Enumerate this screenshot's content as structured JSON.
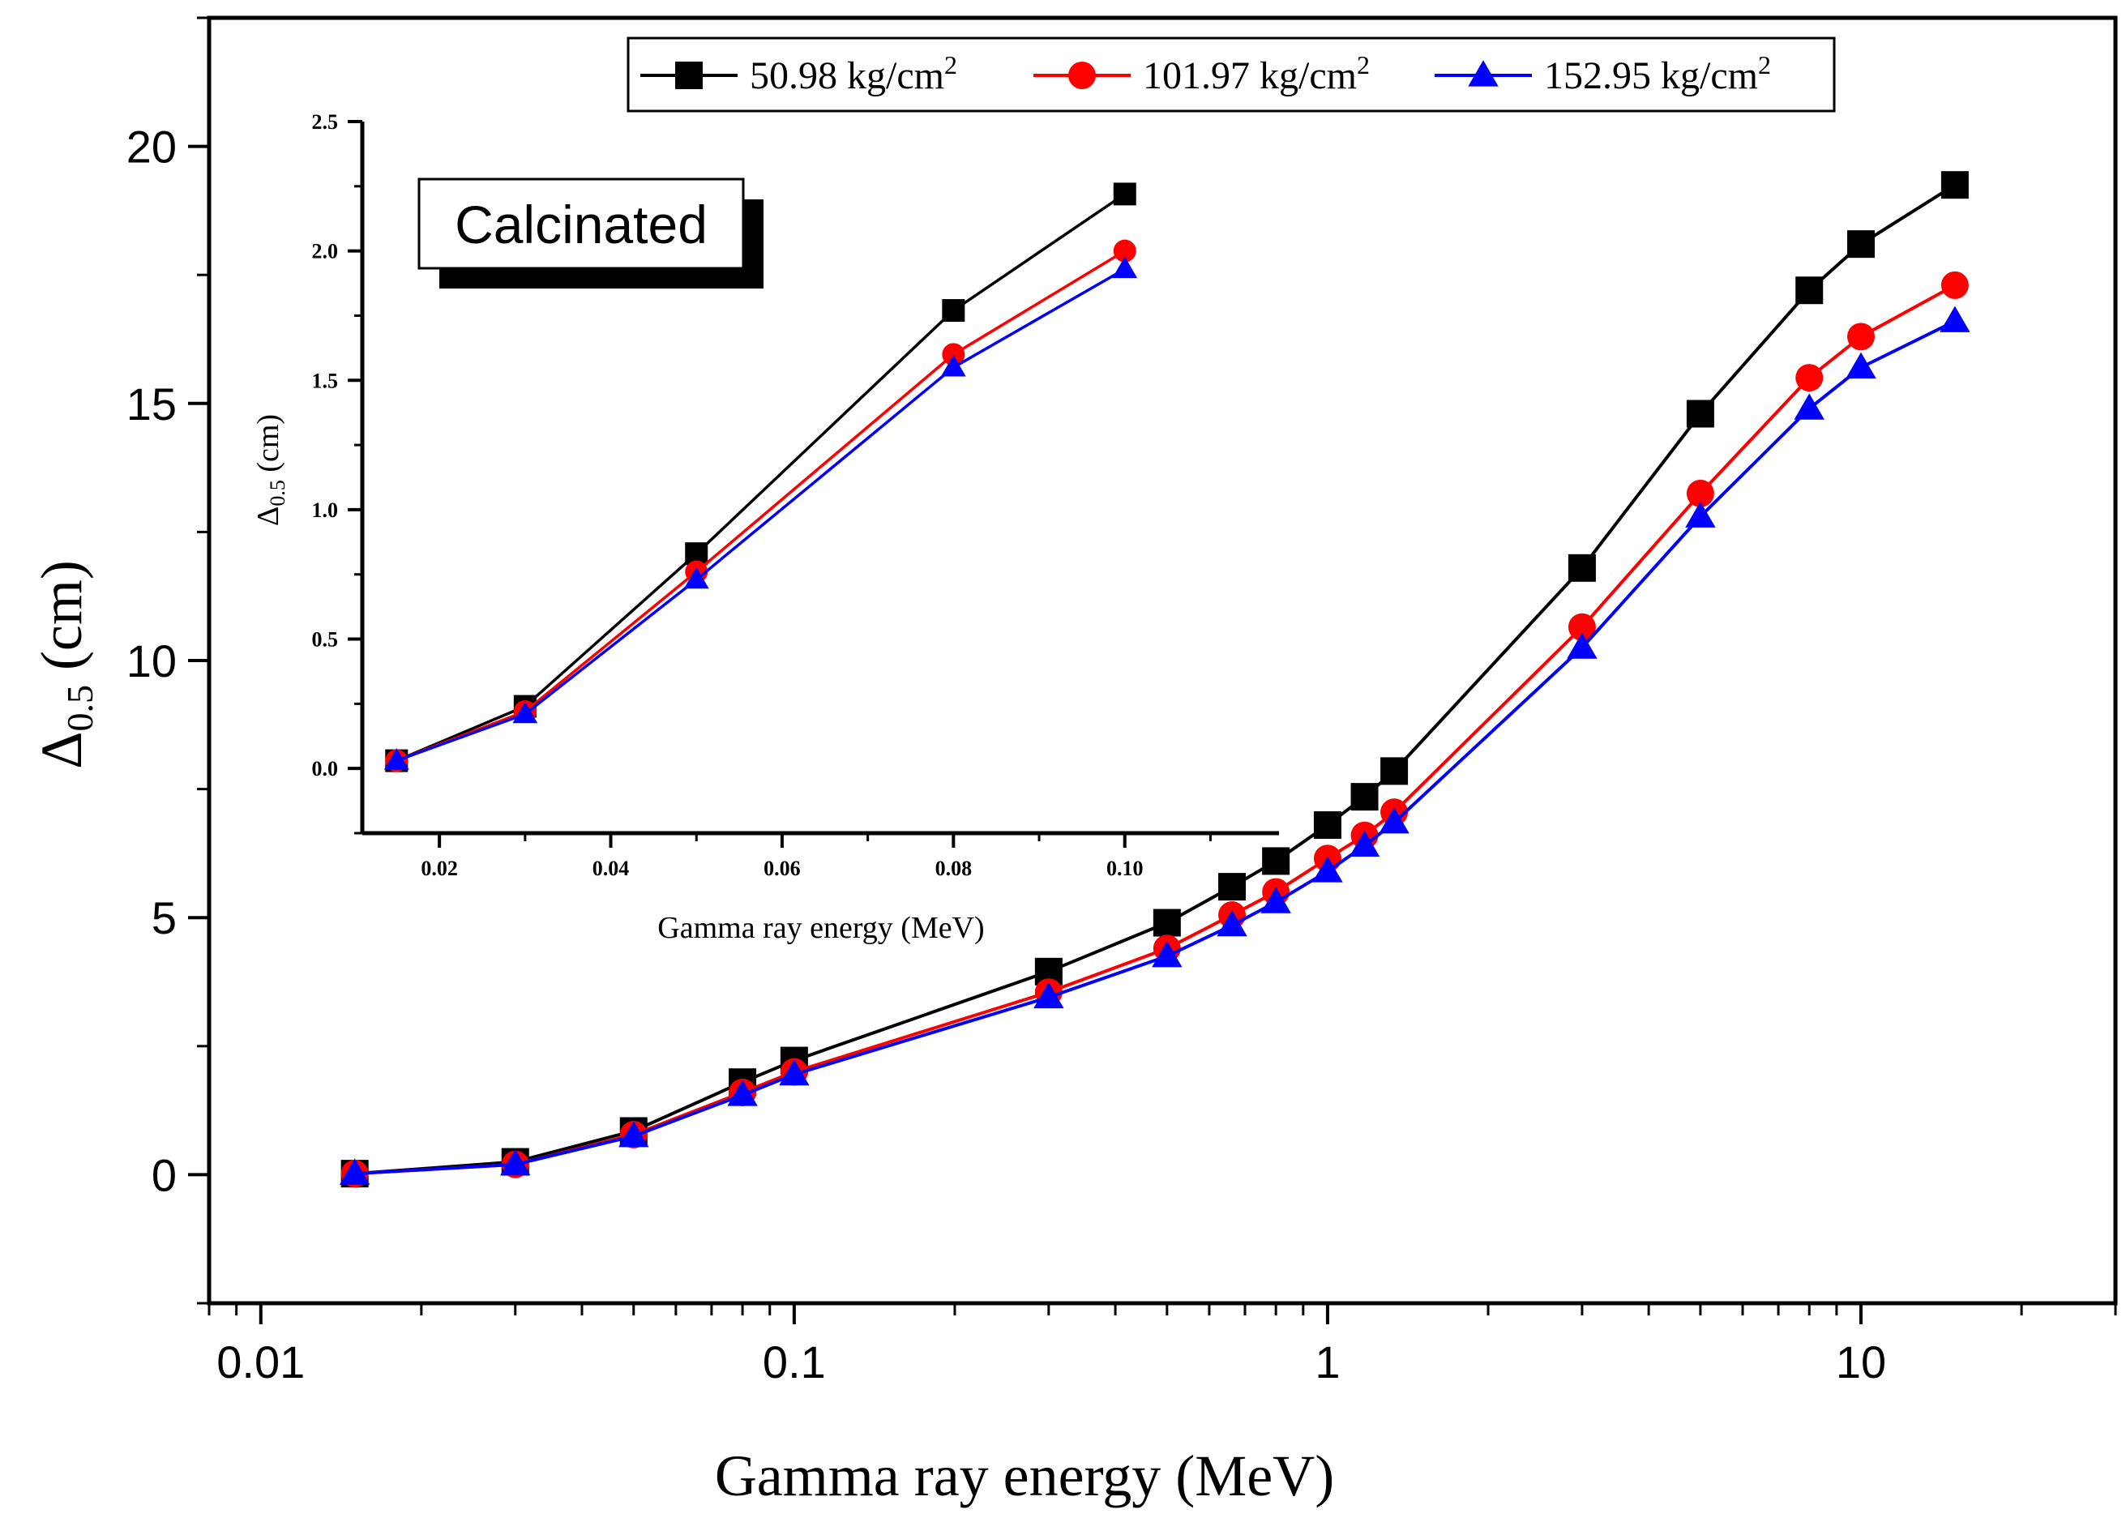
{
  "chart_data": [
    {
      "type": "line",
      "title": "",
      "xscale": "log",
      "xlabel": "Gamma ray energy (MeV)",
      "ylabel": "Δ0.5 (cm)",
      "ylabel_base": "Δ",
      "ylabel_sub": "0.5",
      "ylabel_rest": " (cm)",
      "xlim": [
        0.008,
        30
      ],
      "ylim": [
        -2.5,
        22.5
      ],
      "xticks": [
        0.01,
        0.1,
        1,
        10
      ],
      "xtick_labels": [
        "0.01",
        "0.1",
        "1",
        "10"
      ],
      "yticks": [
        0,
        5,
        10,
        15,
        20
      ],
      "ytick_labels": [
        "0",
        "5",
        "10",
        "15",
        "20"
      ],
      "x": [
        0.015,
        0.03,
        0.05,
        0.08,
        0.1,
        0.3,
        0.5,
        0.662,
        0.8,
        1.0,
        1.173,
        1.333,
        3,
        5,
        8,
        10,
        15
      ],
      "series": [
        {
          "name": "50.98 kg/cm²",
          "marker": "square",
          "color": "#000000",
          "values": [
            0.02,
            0.25,
            0.85,
            1.8,
            2.22,
            3.95,
            4.9,
            5.6,
            6.1,
            6.8,
            7.35,
            7.85,
            11.8,
            14.8,
            17.2,
            18.1,
            19.25
          ]
        },
        {
          "name": "101.97 kg/cm²",
          "marker": "circle",
          "color": "#ff0000",
          "values": [
            0.02,
            0.2,
            0.78,
            1.6,
            2.0,
            3.55,
            4.4,
            5.05,
            5.5,
            6.15,
            6.6,
            7.05,
            10.65,
            13.25,
            15.5,
            16.3,
            17.3
          ]
        },
        {
          "name": "152.95 kg/cm²",
          "marker": "triangle",
          "color": "#0000ff",
          "values": [
            0.02,
            0.2,
            0.75,
            1.55,
            1.95,
            3.45,
            4.25,
            4.85,
            5.3,
            5.9,
            6.4,
            6.85,
            10.25,
            12.8,
            14.9,
            15.7,
            16.6
          ]
        }
      ],
      "legend": {
        "position": "top-center",
        "entries": [
          {
            "base": "50.98 kg/cm",
            "sup": "2"
          },
          {
            "base": "101.97 kg/cm",
            "sup": "2"
          },
          {
            "base": "152.95 kg/cm",
            "sup": "2"
          }
        ]
      },
      "annotation": "Calcinated"
    },
    {
      "type": "line",
      "title": "",
      "xscale": "linear",
      "xlabel": "Gamma ray energy (MeV)",
      "ylabel": "Δ0.5 (cm)",
      "ylabel_base": "Δ",
      "ylabel_sub": "0.5",
      "ylabel_rest": " (cm)",
      "xlim": [
        0.011,
        0.118
      ],
      "ylim": [
        -0.25,
        2.5
      ],
      "xticks": [
        0.02,
        0.04,
        0.06,
        0.08,
        0.1
      ],
      "xtick_labels": [
        "0.02",
        "0.04",
        "0.06",
        "0.08",
        "0.10"
      ],
      "yticks": [
        0,
        0.5,
        1.0,
        1.5,
        2.0,
        2.5
      ],
      "ytick_labels": [
        "0.0",
        "0.5",
        "1.0",
        "1.5",
        "2.0",
        "2.5"
      ],
      "x": [
        0.015,
        0.03,
        0.05,
        0.08,
        0.1
      ],
      "series": [
        {
          "name": "50.98 kg/cm²",
          "marker": "square",
          "color": "#000000",
          "values": [
            0.03,
            0.24,
            0.83,
            1.77,
            2.22
          ]
        },
        {
          "name": "101.97 kg/cm²",
          "marker": "circle",
          "color": "#ff0000",
          "values": [
            0.03,
            0.22,
            0.76,
            1.6,
            2.0
          ]
        },
        {
          "name": "152.95 kg/cm²",
          "marker": "triangle",
          "color": "#0000ff",
          "values": [
            0.03,
            0.21,
            0.73,
            1.55,
            1.93
          ]
        }
      ]
    }
  ]
}
